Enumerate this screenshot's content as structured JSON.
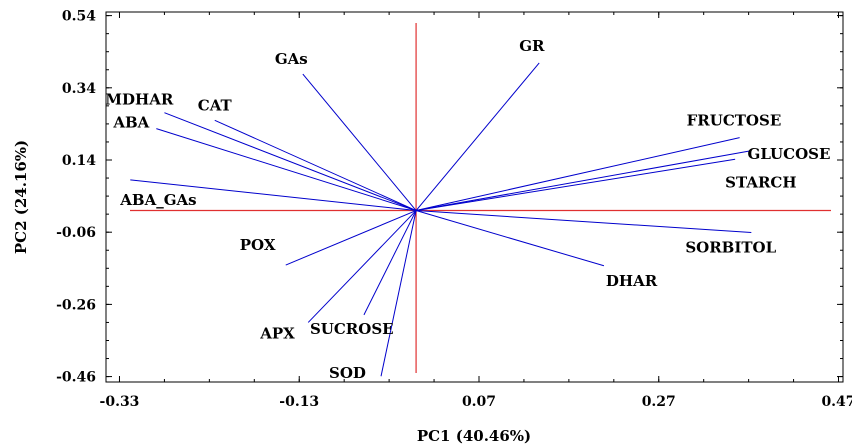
{
  "chart_data": {
    "type": "biplot",
    "xlabel": "PC1 (40.46%)",
    "ylabel": "PC2 (24.16%)",
    "xlim": [
      -0.345,
      0.475
    ],
    "ylim": [
      -0.475,
      0.55
    ],
    "xticks": [
      "-0.33",
      "-0.13",
      "0.07",
      "0.27",
      "0.47"
    ],
    "xtick_values": [
      -0.33,
      -0.13,
      0.07,
      0.27,
      0.47
    ],
    "yticks": [
      "0.54",
      "0.34",
      "0.14",
      "-0.06",
      "-0.26",
      "-0.46"
    ],
    "ytick_values": [
      0.54,
      0.34,
      0.14,
      -0.06,
      -0.26,
      -0.46
    ],
    "origin": [
      0,
      0
    ],
    "colors": {
      "vectors": "#0000cc",
      "reference_lines": "#e03030",
      "frame": "#000000"
    },
    "vectors": [
      {
        "name": "GR",
        "x": 0.137,
        "y": 0.409
      },
      {
        "name": "GAs",
        "x": -0.126,
        "y": 0.378
      },
      {
        "name": "MDHAR",
        "x": -0.28,
        "y": 0.271
      },
      {
        "name": "CAT",
        "x": -0.224,
        "y": 0.25
      },
      {
        "name": "ABA",
        "x": -0.289,
        "y": 0.227
      },
      {
        "name": "ABA_GAs",
        "x": -0.318,
        "y": 0.085
      },
      {
        "name": "FRUCTOSE",
        "x": 0.36,
        "y": 0.202
      },
      {
        "name": "GLUCOSE",
        "x": 0.371,
        "y": 0.165
      },
      {
        "name": "STARCH",
        "x": 0.355,
        "y": 0.142
      },
      {
        "name": "SORBITOL",
        "x": 0.373,
        "y": -0.061
      },
      {
        "name": "DHAR",
        "x": 0.209,
        "y": -0.153
      },
      {
        "name": "POX",
        "x": -0.145,
        "y": -0.151
      },
      {
        "name": "APX",
        "x": -0.12,
        "y": -0.31
      },
      {
        "name": "SUCROSE",
        "x": -0.058,
        "y": -0.289
      },
      {
        "name": "SOD",
        "x": -0.039,
        "y": -0.459
      }
    ]
  }
}
